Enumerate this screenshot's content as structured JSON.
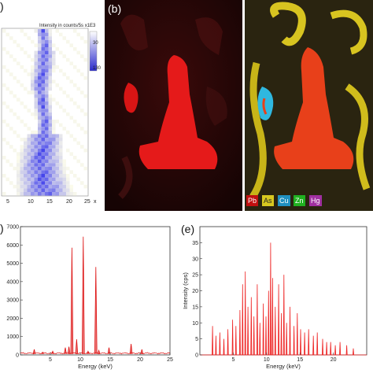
{
  "panels": {
    "a": {
      "label": ")",
      "cbar_title": "Intensity in counts/5s x1E3",
      "cbar_values": [
        "30",
        "130"
      ],
      "x_ticks": [
        "5",
        "10",
        "15",
        "20",
        "25"
      ],
      "x_unit": "x"
    },
    "b": {
      "label": "(b)"
    },
    "c": {
      "legend": [
        {
          "text": "Pb",
          "color": "#ff2a2a"
        },
        {
          "text": "As",
          "color": "#f0e020"
        },
        {
          "text": "Cu",
          "color": "#22c4f0"
        },
        {
          "text": "Zn",
          "color": "#22dd22"
        },
        {
          "text": "Hg",
          "color": "#c040c0"
        }
      ]
    },
    "d": {
      "label": ")"
    },
    "e": {
      "label": "(e)"
    }
  },
  "chart_data": [
    {
      "type": "line",
      "panel": "d",
      "xlabel": "Energy (keV)",
      "ylabel": "",
      "xlim": [
        0,
        25
      ],
      "ylim": [
        0,
        7000
      ],
      "x_ticks": [
        5,
        10,
        15,
        20,
        25
      ],
      "y_ticks": [
        0,
        1000,
        2000,
        3000,
        4000,
        5000,
        6000,
        7000
      ],
      "series": [
        {
          "color": "#dd1111",
          "peaks": [
            {
              "x": 2.3,
              "y": 300
            },
            {
              "x": 3.7,
              "y": 150
            },
            {
              "x": 5.4,
              "y": 200
            },
            {
              "x": 7.5,
              "y": 400
            },
            {
              "x": 8.1,
              "y": 450
            },
            {
              "x": 8.6,
              "y": 5850
            },
            {
              "x": 9.4,
              "y": 850
            },
            {
              "x": 10.5,
              "y": 6450
            },
            {
              "x": 11.3,
              "y": 200
            },
            {
              "x": 12.6,
              "y": 4800
            },
            {
              "x": 13.1,
              "y": 250
            },
            {
              "x": 14.8,
              "y": 400
            },
            {
              "x": 18.5,
              "y": 600
            },
            {
              "x": 20.3,
              "y": 300
            }
          ]
        }
      ]
    },
    {
      "type": "line",
      "panel": "e",
      "xlabel": "Energy (keV)",
      "ylabel": "Intensity (cps)",
      "xlim": [
        0,
        25
      ],
      "ylim": [
        0,
        40
      ],
      "x_ticks": [
        5,
        10,
        15,
        20
      ],
      "y_ticks": [
        0,
        5,
        10,
        15,
        20,
        25,
        30,
        35
      ],
      "series": [
        {
          "color": "#ee2222",
          "peaks": [
            {
              "x": 1.9,
              "y": 9
            },
            {
              "x": 2.4,
              "y": 6
            },
            {
              "x": 3.0,
              "y": 7
            },
            {
              "x": 3.6,
              "y": 5
            },
            {
              "x": 4.2,
              "y": 8
            },
            {
              "x": 4.9,
              "y": 11
            },
            {
              "x": 5.4,
              "y": 9
            },
            {
              "x": 6.0,
              "y": 14
            },
            {
              "x": 6.4,
              "y": 22
            },
            {
              "x": 6.8,
              "y": 26
            },
            {
              "x": 7.2,
              "y": 15
            },
            {
              "x": 7.7,
              "y": 18
            },
            {
              "x": 8.1,
              "y": 12
            },
            {
              "x": 8.6,
              "y": 22
            },
            {
              "x": 9.0,
              "y": 10
            },
            {
              "x": 9.5,
              "y": 16
            },
            {
              "x": 9.9,
              "y": 12
            },
            {
              "x": 10.3,
              "y": 20
            },
            {
              "x": 10.6,
              "y": 35
            },
            {
              "x": 10.9,
              "y": 24
            },
            {
              "x": 11.3,
              "y": 15
            },
            {
              "x": 11.8,
              "y": 22
            },
            {
              "x": 12.2,
              "y": 13
            },
            {
              "x": 12.6,
              "y": 25
            },
            {
              "x": 13.0,
              "y": 10
            },
            {
              "x": 13.5,
              "y": 15
            },
            {
              "x": 14.1,
              "y": 9
            },
            {
              "x": 14.6,
              "y": 13
            },
            {
              "x": 15.1,
              "y": 8
            },
            {
              "x": 15.7,
              "y": 7
            },
            {
              "x": 16.3,
              "y": 8
            },
            {
              "x": 17.0,
              "y": 6
            },
            {
              "x": 17.6,
              "y": 7
            },
            {
              "x": 18.4,
              "y": 5
            },
            {
              "x": 19.0,
              "y": 4
            },
            {
              "x": 19.6,
              "y": 4
            },
            {
              "x": 20.3,
              "y": 3
            },
            {
              "x": 21.0,
              "y": 4
            },
            {
              "x": 22.0,
              "y": 3
            },
            {
              "x": 23.0,
              "y": 2
            }
          ]
        }
      ]
    }
  ]
}
